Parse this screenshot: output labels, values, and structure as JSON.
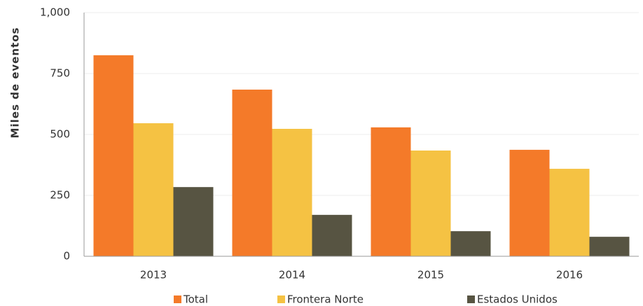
{
  "chart_data": {
    "type": "bar",
    "y_label": "Miles de eventos",
    "categories": [
      "2013",
      "2014",
      "2015",
      "2016"
    ],
    "series": [
      {
        "name": "Total",
        "color": "#f47a29",
        "values": [
          825,
          684,
          529,
          437
        ]
      },
      {
        "name": "Frontera Norte",
        "color": "#f5c243",
        "values": [
          546,
          523,
          434,
          359
        ]
      },
      {
        "name": "Estados Unidos",
        "color": "#575442",
        "values": [
          284,
          170,
          103,
          80
        ]
      }
    ],
    "ylim": [
      0,
      1000
    ],
    "yticks": [
      0,
      250,
      500,
      750,
      {
        "value": 1000,
        "label": "1,000"
      }
    ],
    "grid": true
  }
}
